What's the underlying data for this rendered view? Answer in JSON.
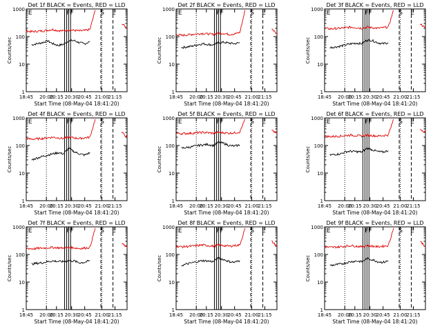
{
  "panel_defaults": {
    "type": "line",
    "xlabel": "Start Time (08-May-04 18:41:20)",
    "ylabel": "Counts/sec",
    "x_ticks": [
      "18:45",
      "20:00",
      "20:15",
      "20:30",
      "20:45",
      "21:00",
      "21:15"
    ],
    "y_ticks": [
      "1",
      "10",
      "100",
      "1000"
    ],
    "ylim": [
      1,
      1000
    ],
    "y_scale": "log",
    "event_markers": [
      "E",
      "FF",
      "S",
      "E"
    ],
    "series_colors": {
      "events": "#000000",
      "lld": "#e00000"
    }
  },
  "chart_data": [
    {
      "title": "Det 1f BLACK = Events, RED = LLD",
      "series": [
        {
          "key": "events",
          "values": [
            null,
            50,
            55,
            60,
            70,
            55,
            48,
            52,
            70,
            72,
            60,
            55,
            65,
            null,
            null,
            null,
            null,
            null,
            null,
            null
          ]
        },
        {
          "key": "lld",
          "values": [
            160,
            150,
            155,
            160,
            170,
            180,
            165,
            160,
            175,
            168,
            160,
            165,
            180,
            900,
            null,
            null,
            null,
            null,
            300,
            200
          ]
        }
      ]
    },
    {
      "title": "Det 2f BLACK = Events, RED = LLD",
      "series": [
        {
          "key": "events",
          "values": [
            null,
            40,
            42,
            45,
            50,
            55,
            52,
            50,
            60,
            62,
            58,
            55,
            60,
            null,
            null,
            null,
            null,
            null,
            null,
            null
          ]
        },
        {
          "key": "lld",
          "values": [
            120,
            110,
            115,
            120,
            125,
            130,
            125,
            120,
            135,
            130,
            120,
            125,
            140,
            900,
            null,
            null,
            null,
            null,
            200,
            120
          ]
        }
      ]
    },
    {
      "title": "Det 3f BLACK = Events, RED = LLD",
      "series": [
        {
          "key": "events",
          "values": [
            null,
            40,
            42,
            45,
            50,
            55,
            58,
            55,
            75,
            72,
            60,
            55,
            60,
            null,
            null,
            null,
            null,
            null,
            null,
            null
          ]
        },
        {
          "key": "lld",
          "values": [
            200,
            190,
            195,
            200,
            210,
            220,
            210,
            200,
            220,
            210,
            200,
            210,
            220,
            900,
            null,
            null,
            null,
            null,
            300,
            200
          ]
        }
      ]
    },
    {
      "title": "Det 4f BLACK = Events, RED = LLD",
      "series": [
        {
          "key": "events",
          "values": [
            null,
            30,
            35,
            40,
            45,
            50,
            55,
            50,
            80,
            60,
            50,
            45,
            55,
            null,
            null,
            null,
            null,
            null,
            null,
            null
          ]
        },
        {
          "key": "lld",
          "values": [
            180,
            170,
            175,
            180,
            190,
            200,
            190,
            180,
            200,
            190,
            180,
            190,
            200,
            900,
            null,
            null,
            null,
            null,
            300,
            200
          ]
        }
      ]
    },
    {
      "title": "Det 5f BLACK = Events, RED = LLD",
      "series": [
        {
          "key": "events",
          "values": [
            null,
            80,
            85,
            90,
            100,
            105,
            110,
            100,
            130,
            120,
            100,
            95,
            105,
            null,
            null,
            null,
            null,
            null,
            null,
            null
          ]
        },
        {
          "key": "lld",
          "values": [
            280,
            270,
            275,
            280,
            290,
            300,
            290,
            280,
            300,
            290,
            280,
            290,
            310,
            900,
            null,
            null,
            null,
            null,
            350,
            280
          ]
        }
      ]
    },
    {
      "title": "Det 6f BLACK = Events, RED = LLD",
      "series": [
        {
          "key": "events",
          "values": [
            null,
            45,
            48,
            50,
            60,
            62,
            60,
            58,
            80,
            70,
            60,
            58,
            65,
            null,
            null,
            null,
            null,
            null,
            null,
            null
          ]
        },
        {
          "key": "lld",
          "values": [
            220,
            210,
            215,
            220,
            230,
            240,
            230,
            220,
            240,
            230,
            220,
            230,
            240,
            900,
            null,
            null,
            null,
            null,
            400,
            300
          ]
        }
      ]
    },
    {
      "title": "Det 7f BLACK = Events, RED = LLD",
      "series": [
        {
          "key": "events",
          "values": [
            null,
            45,
            48,
            50,
            55,
            58,
            56,
            55,
            60,
            58,
            50,
            52,
            60,
            null,
            null,
            null,
            null,
            null,
            null,
            null
          ]
        },
        {
          "key": "lld",
          "values": [
            170,
            160,
            165,
            170,
            175,
            180,
            175,
            170,
            180,
            175,
            165,
            170,
            180,
            900,
            null,
            null,
            null,
            null,
            250,
            180
          ]
        }
      ]
    },
    {
      "title": "Det 8f BLACK = Events, RED = LLD",
      "series": [
        {
          "key": "events",
          "values": [
            null,
            40,
            45,
            50,
            55,
            60,
            58,
            55,
            75,
            65,
            55,
            52,
            60,
            null,
            null,
            null,
            null,
            null,
            null,
            null
          ]
        },
        {
          "key": "lld",
          "values": [
            200,
            190,
            195,
            200,
            210,
            220,
            210,
            200,
            220,
            210,
            200,
            210,
            220,
            900,
            null,
            null,
            null,
            null,
            300,
            200
          ]
        }
      ]
    },
    {
      "title": "Det 9f BLACK = Events, RED = LLD",
      "series": [
        {
          "key": "events",
          "values": [
            null,
            40,
            42,
            45,
            50,
            55,
            58,
            55,
            70,
            65,
            55,
            52,
            58,
            null,
            null,
            null,
            null,
            null,
            null,
            null
          ]
        },
        {
          "key": "lld",
          "values": [
            190,
            180,
            185,
            190,
            200,
            210,
            200,
            190,
            210,
            200,
            190,
            200,
            210,
            900,
            null,
            null,
            null,
            null,
            300,
            200
          ]
        }
      ]
    }
  ]
}
